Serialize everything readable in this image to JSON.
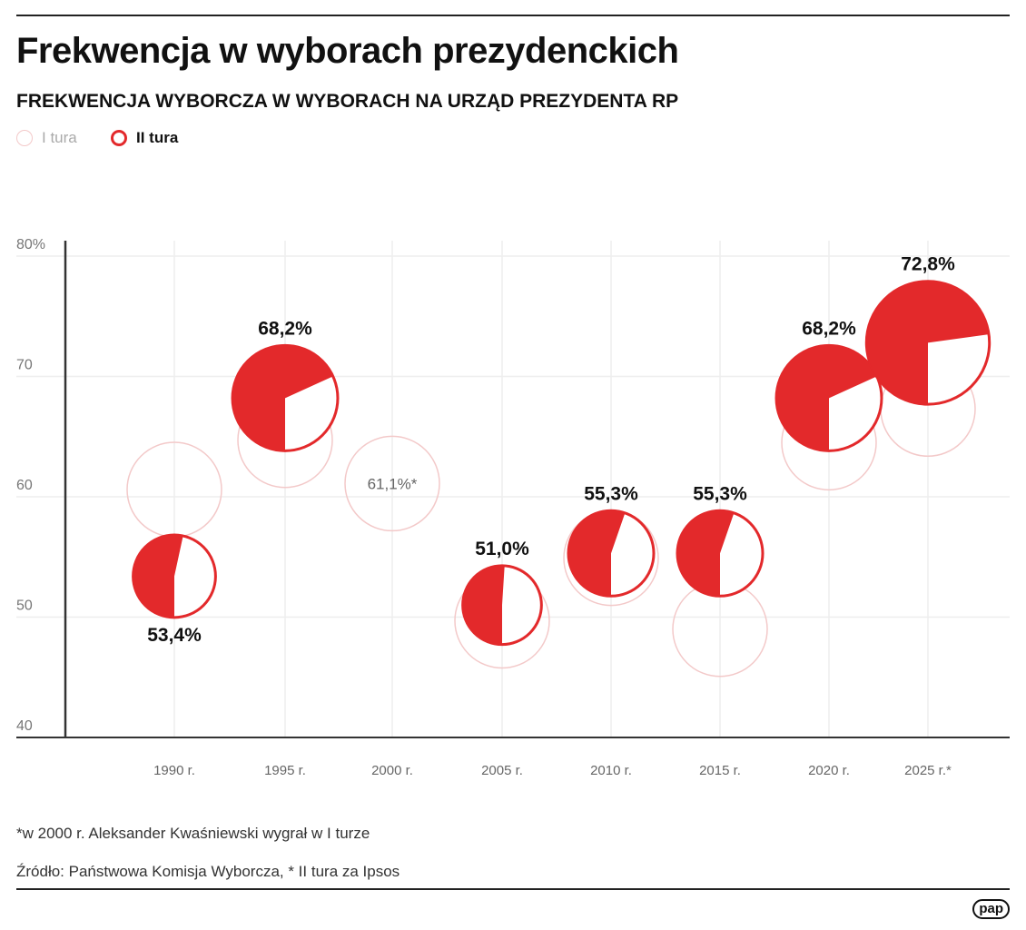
{
  "title": "Frekwencja w wyborach prezydenckich",
  "subtitle": "FREKWENCJA WYBORCZA W WYBORACH NA URZĄD PREZYDENTA RP",
  "legend": {
    "round1": "I tura",
    "round2": "II tura"
  },
  "colors": {
    "accent": "#e3292b",
    "round1_outline": "#f3c9c9",
    "grid": "#eeeeee"
  },
  "chart_data": {
    "type": "scatter",
    "title": "",
    "xlabel": "",
    "ylabel": "",
    "ylim": [
      40,
      80
    ],
    "yticks": [
      "80%",
      "70",
      "60",
      "50",
      "40"
    ],
    "ytick_values": [
      80,
      70,
      60,
      50,
      40
    ],
    "grid": true,
    "legend_position": "top-left",
    "categories": [
      "1990 r.",
      "1995 r.",
      "2000 r.",
      "2005 r.",
      "2010 r.",
      "2015 r.",
      "2020 r.",
      "2025 r.*"
    ],
    "series": [
      {
        "name": "I tura",
        "values": [
          60.6,
          64.7,
          61.1,
          49.7,
          54.9,
          49.0,
          64.5,
          67.3
        ],
        "labels": [
          "",
          "",
          "61,1%*",
          "",
          "",
          "",
          "",
          ""
        ]
      },
      {
        "name": "II tura",
        "values": [
          53.4,
          68.2,
          null,
          51.0,
          55.3,
          55.3,
          68.2,
          72.8
        ],
        "labels": [
          "53,4%",
          "68,2%",
          "",
          "51,0%",
          "55,3%",
          "55,3%",
          "68,2%",
          "72,8%"
        ]
      }
    ]
  },
  "footnote": "*w 2000 r. Aleksander Kwaśniewski wygrał w I turze",
  "source": "Źródło: Państwowa Komisja Wyborcza, * II tura za Ipsos",
  "logo": "pap"
}
